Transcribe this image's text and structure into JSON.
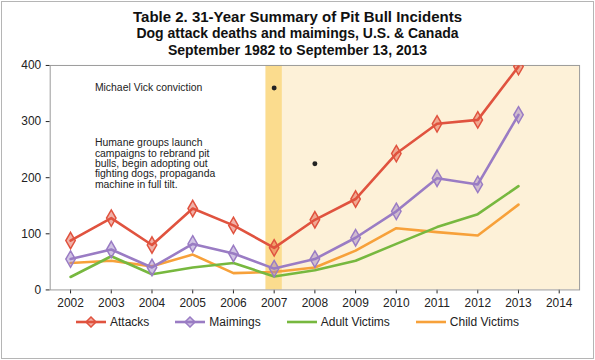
{
  "chart_data": {
    "type": "line",
    "title": "Table 2. 31-Year Summary of Pit Bull Incidents",
    "subtitle": [
      "Dog attack deaths and maimings, U.S. & Canada",
      "September 1982 to September 13, 2013"
    ],
    "x": [
      2002,
      2003,
      2004,
      2005,
      2006,
      2007,
      2008,
      2009,
      2010,
      2011,
      2012,
      2013,
      2014
    ],
    "xlim": [
      2001.5,
      2014.5
    ],
    "xticks": [
      2002,
      2003,
      2004,
      2005,
      2006,
      2007,
      2008,
      2009,
      2010,
      2011,
      2012,
      2013,
      2014
    ],
    "ylim": [
      0,
      400
    ],
    "yticks": [
      0,
      100,
      200,
      300,
      400
    ],
    "grid": false,
    "legend": "bottom",
    "series": [
      {
        "name": "Attacks",
        "color": "#e0533f",
        "marker": "diamond",
        "values": [
          88,
          128,
          80,
          145,
          115,
          75,
          125,
          162,
          243,
          296,
          303,
          398,
          null
        ]
      },
      {
        "name": "Maimings",
        "color": "#9a7cc4",
        "marker": "diamond",
        "values": [
          55,
          72,
          40,
          82,
          65,
          38,
          55,
          93,
          140,
          199,
          188,
          312,
          null
        ]
      },
      {
        "name": "Adult Victims",
        "color": "#77b83f",
        "marker": "none",
        "values": [
          23,
          60,
          28,
          40,
          48,
          24,
          35,
          52,
          82,
          112,
          135,
          185,
          null
        ]
      },
      {
        "name": "Child Victims",
        "color": "#f7a13a",
        "marker": "none",
        "values": [
          48,
          52,
          42,
          63,
          30,
          32,
          40,
          70,
          110,
          103,
          97,
          152,
          null
        ]
      }
    ],
    "bands": [
      {
        "x1": 2006.8,
        "x2": 2014.5,
        "color": "#fdf1d8"
      },
      {
        "x1": 2006.8,
        "x2": 2007.2,
        "color": "#fbdc8e"
      }
    ],
    "annotations": [
      {
        "text": "Michael Vick conviction",
        "x": 2007,
        "y": 360
      },
      {
        "text": "Humane groups launch campaigns to rebrand pit bulls, begin adopting out fighting dogs, propaganda machine in full tilt.",
        "x": 2008,
        "y": 225
      }
    ]
  }
}
